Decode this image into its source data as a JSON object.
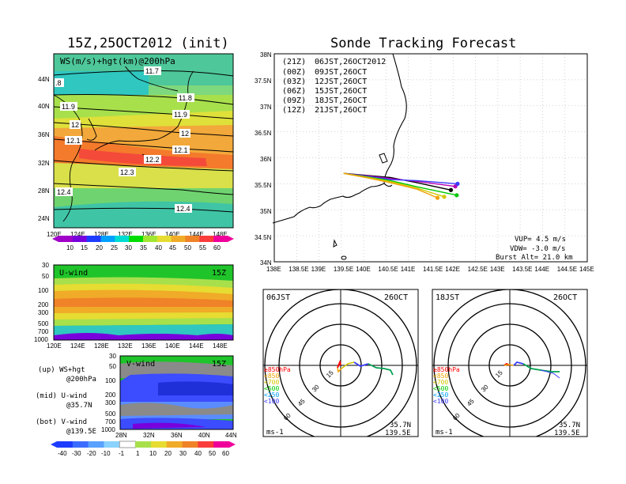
{
  "titles": {
    "left": "15Z,25OCT2012 (init)",
    "right": "Sonde Tracking Forecast"
  },
  "colors": {
    "scale": [
      "#a000c8",
      "#7800dc",
      "#1e3cff",
      "#00a0ff",
      "#00dcd2",
      "#00dc00",
      "#a0e632",
      "#e6dc32",
      "#f0ab28",
      "#f08228",
      "#fa3c3c",
      "#f0009a"
    ],
    "track_21z": "#000000",
    "track_00z": "#b400b4",
    "track_03z": "#3c3cff",
    "track_06z": "#00c800",
    "track_09z": "#d2c800",
    "track_12z": "#f0a000"
  },
  "map_panel": {
    "title_label": "WS(m/s)+hgt(km)@200hPa",
    "lat_ticks": [
      "44N",
      "40N",
      "36N",
      "32N",
      "28N",
      "24N"
    ],
    "lon_ticks": [
      "120E",
      "124E",
      "128E",
      "132E",
      "136E",
      "140E",
      "144E",
      "148E"
    ],
    "contour_labels": [
      "11.7",
      "11.8",
      "11.9",
      "11.9",
      "12",
      "12",
      "12.1",
      "12.1",
      "12.2",
      "12.3",
      "12.4",
      "12.4",
      ".8"
    ],
    "colorbar_ticks": [
      "10",
      "15",
      "20",
      "25",
      "30",
      "35",
      "40",
      "45",
      "50",
      "55",
      "60"
    ]
  },
  "uwind_panel": {
    "label": "U-wind",
    "time": "15Z",
    "p_ticks": [
      "30",
      "50",
      "100",
      "200",
      "300",
      "500",
      "700",
      "1000"
    ],
    "lon_ticks": [
      "120E",
      "124E",
      "128E",
      "132E",
      "136E",
      "140E",
      "144E",
      "148E"
    ]
  },
  "vwind_panel": {
    "label": "V-wind",
    "time": "15Z",
    "p_ticks": [
      "30",
      "50",
      "100",
      "200",
      "300",
      "500",
      "700",
      "1000"
    ],
    "lat_ticks": [
      "28N",
      "32N",
      "36N",
      "40N",
      "44N"
    ]
  },
  "side_legend": {
    "up_1": "(up) WS+hgt",
    "up_2": "@200hPa",
    "mid_1": "(mid) U-wind",
    "mid_2": "@35.7N",
    "bot_1": "(bot) V-wind",
    "bot_2": "@139.5E"
  },
  "bottom_colorbar_ticks": [
    "-40",
    "-30",
    "-20",
    "-10",
    "-1",
    "1",
    "10",
    "20",
    "30",
    "40",
    "50",
    "60"
  ],
  "track_panel": {
    "legend": [
      {
        "utc": "(21Z)",
        "jst": "06JST,26OCT2012",
        "color": "#000000"
      },
      {
        "utc": "(00Z)",
        "jst": "09JST,26OCT",
        "color": "#b400b4"
      },
      {
        "utc": "(03Z)",
        "jst": "12JST,26OCT",
        "color": "#3c3cff"
      },
      {
        "utc": "(06Z)",
        "jst": "15JST,26OCT",
        "color": "#00c800"
      },
      {
        "utc": "(09Z)",
        "jst": "18JST,26OCT",
        "color": "#d2c800"
      },
      {
        "utc": "(12Z)",
        "jst": "21JST,26OCT",
        "color": "#f0a000"
      }
    ],
    "lat_ticks": [
      "38N",
      "37.5N",
      "37N",
      "36.5N",
      "36N",
      "35.5N",
      "35N",
      "34.5N",
      "34N"
    ],
    "lon_ticks": [
      "138E",
      "138.5E",
      "139E",
      "139.5E",
      "140E",
      "140.5E",
      "141E",
      "141.5E",
      "142E",
      "142.5E",
      "143E",
      "143.5E",
      "144E",
      "144.5E",
      "145E"
    ],
    "vup": "VUP= 4.5 m/s",
    "vdw": "VDW= -3.0 m/s",
    "burst": "Burst Alt= 21.0 km"
  },
  "hodo_left": {
    "time": "06JST",
    "date": "26OCT",
    "ring_labels": [
      "15",
      "30",
      "45",
      "60"
    ],
    "levels": [
      "≥850hPa",
      "<850",
      "<700",
      "<500",
      "<250",
      "<100"
    ],
    "unit": "ms-1",
    "lat": "35.7N",
    "lon": "139.5E"
  },
  "hodo_right": {
    "time": "18JST",
    "date": "26OCT",
    "ring_labels": [
      "15",
      "30",
      "45",
      "60"
    ],
    "levels": [
      "≥850hPa",
      "<850",
      "<700",
      "<500",
      "<250",
      "<100"
    ],
    "unit": "ms-1",
    "lat": "35.7N",
    "lon": "139.5E"
  }
}
